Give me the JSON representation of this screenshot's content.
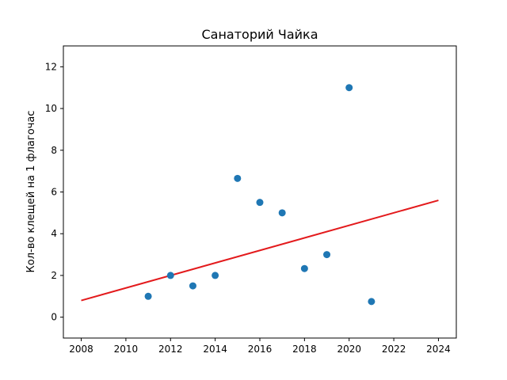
{
  "chart_data": {
    "type": "scatter",
    "title": "Санаторий Чайка",
    "xlabel": "",
    "ylabel": "Кол-во клещей на 1 флагочас",
    "xlim": [
      2007.2,
      2024.8
    ],
    "ylim": [
      -1.0,
      13.0
    ],
    "xticks": [
      2008,
      2010,
      2012,
      2014,
      2016,
      2018,
      2020,
      2022,
      2024
    ],
    "yticks": [
      0,
      2,
      4,
      6,
      8,
      10,
      12
    ],
    "grid": false,
    "series": [
      {
        "kind": "scatter",
        "color": "#1f77b4",
        "x": [
          2011,
          2012,
          2013,
          2014,
          2015,
          2016,
          2017,
          2018,
          2019,
          2020,
          2021
        ],
        "y": [
          1.0,
          2.0,
          1.5,
          2.0,
          6.65,
          5.5,
          5.0,
          2.33,
          3.0,
          11.0,
          0.75
        ]
      },
      {
        "kind": "line",
        "color": "#e31a1c",
        "x": [
          2008,
          2024
        ],
        "y": [
          0.8,
          5.6
        ]
      }
    ]
  }
}
